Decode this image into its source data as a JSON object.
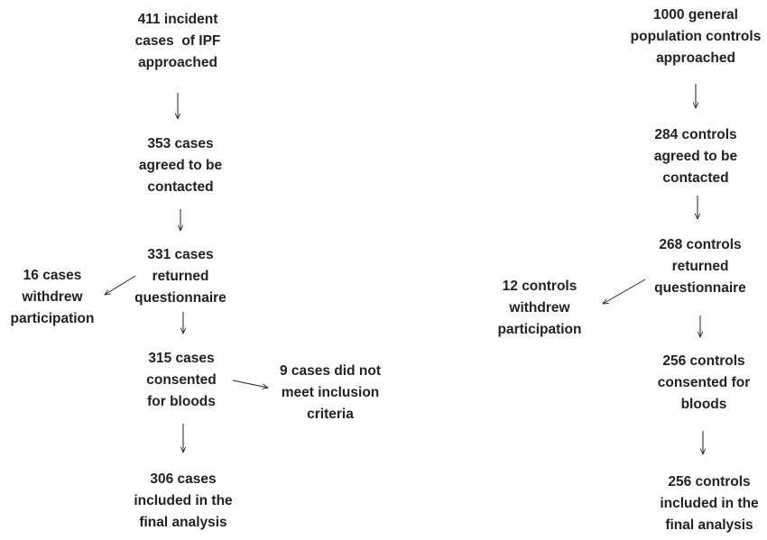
{
  "nodes": [
    {
      "lines": [
        "411 incident",
        "cases  of IPF",
        "approached"
      ]
    },
    {
      "lines": [
        "353 cases",
        "agreed to be",
        "contacted"
      ]
    },
    {
      "lines": [
        "331 cases",
        "returned",
        "questionnaire"
      ]
    },
    {
      "lines": [
        "16 cases",
        "withdrew",
        "participation"
      ]
    },
    {
      "lines": [
        "315 cases",
        "consented",
        "for bloods"
      ]
    },
    {
      "lines": [
        "9 cases did not",
        "meet inclusion",
        "criteria"
      ]
    },
    {
      "lines": [
        "306 cases",
        "included in the",
        "final analysis"
      ]
    },
    {
      "lines": [
        "1000 general",
        "population controls",
        "approached"
      ]
    },
    {
      "lines": [
        "284 controls",
        "agreed to be",
        "contacted"
      ]
    },
    {
      "lines": [
        "268 controls",
        "returned",
        "questionnaire"
      ]
    },
    {
      "lines": [
        "12 controls",
        "withdrew",
        "participation"
      ]
    },
    {
      "lines": [
        "256 controls",
        "consented for",
        "bloods"
      ]
    },
    {
      "lines": [
        "256 controls",
        "included in the",
        "final analysis"
      ]
    }
  ]
}
